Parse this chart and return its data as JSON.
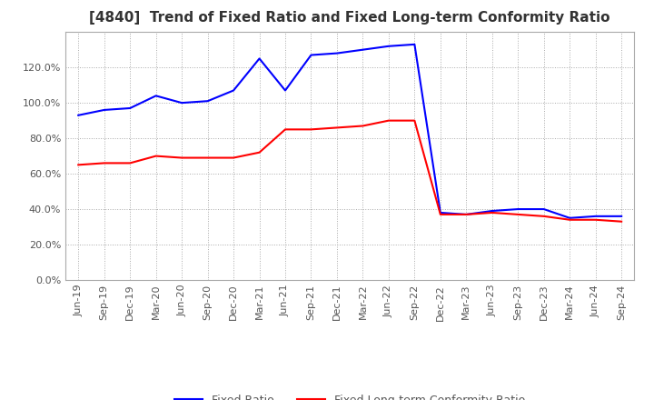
{
  "title": "[4840]  Trend of Fixed Ratio and Fixed Long-term Conformity Ratio",
  "x_labels": [
    "Jun-19",
    "Sep-19",
    "Dec-19",
    "Mar-20",
    "Jun-20",
    "Sep-20",
    "Dec-20",
    "Mar-21",
    "Jun-21",
    "Sep-21",
    "Dec-21",
    "Mar-22",
    "Jun-22",
    "Sep-22",
    "Dec-22",
    "Mar-23",
    "Jun-23",
    "Sep-23",
    "Dec-23",
    "Mar-24",
    "Jun-24",
    "Sep-24"
  ],
  "fixed_ratio": [
    93,
    96,
    97,
    104,
    100,
    101,
    107,
    125,
    107,
    127,
    128,
    130,
    132,
    133,
    38,
    37,
    39,
    40,
    40,
    35,
    36,
    36
  ],
  "fixed_lt_ratio": [
    65,
    66,
    66,
    70,
    69,
    69,
    69,
    72,
    85,
    85,
    86,
    87,
    90,
    90,
    37,
    37,
    38,
    37,
    36,
    34,
    34,
    33
  ],
  "fixed_ratio_color": "#0000ff",
  "fixed_lt_ratio_color": "#ff0000",
  "ylim_min": 0,
  "ylim_max": 140,
  "yticks": [
    0,
    20,
    40,
    60,
    80,
    100,
    120
  ],
  "background_color": "#ffffff",
  "grid_color": "#aaaaaa",
  "legend_fixed": "Fixed Ratio",
  "legend_lt": "Fixed Long-term Conformity Ratio",
  "title_fontsize": 11,
  "tick_fontsize": 8,
  "legend_fontsize": 9
}
